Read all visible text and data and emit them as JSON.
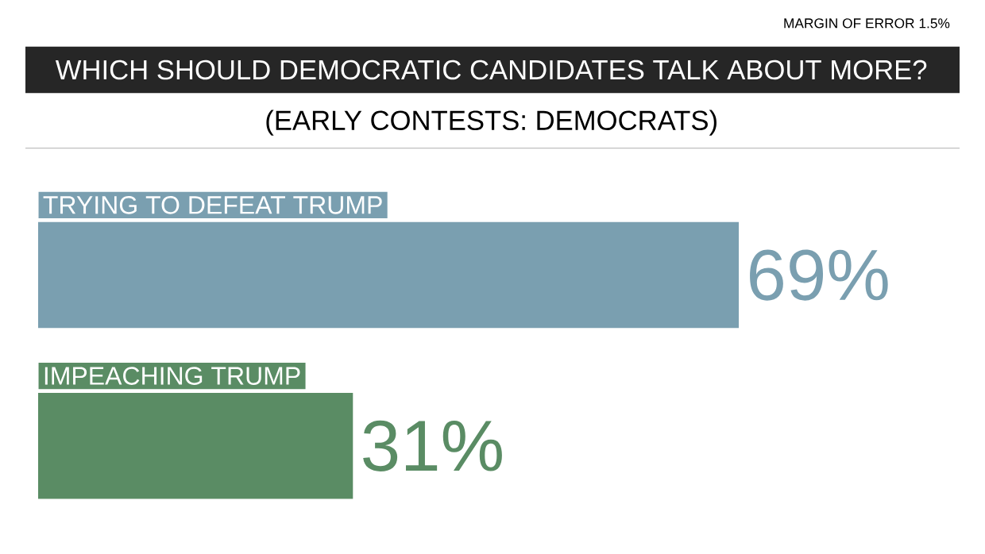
{
  "chart_data": {
    "type": "bar",
    "orientation": "horizontal",
    "title": "WHICH SHOULD DEMOCRATIC CANDIDATES TALK ABOUT MORE?",
    "subtitle": "(EARLY CONTESTS: DEMOCRATS)",
    "annotations": [
      "MARGIN OF ERROR 1.5%"
    ],
    "categories": [
      "TRYING TO DEFEAT TRUMP",
      "IMPEACHING TRUMP"
    ],
    "values": [
      69,
      31
    ],
    "colors": [
      "#7a9fb0",
      "#5a8c64"
    ],
    "value_labels": [
      "69%",
      "31%"
    ]
  }
}
